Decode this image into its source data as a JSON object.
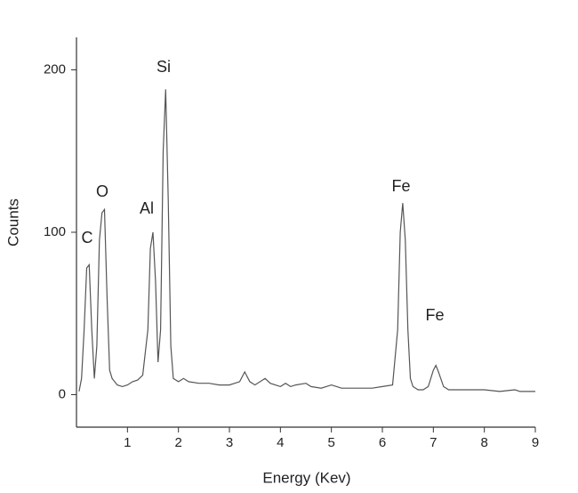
{
  "chart_data": {
    "type": "line",
    "x_label": "Energy (Kev)",
    "y_label": "Counts",
    "xlim": [
      0,
      9
    ],
    "ylim": [
      -20,
      220
    ],
    "xticks": [
      1,
      2,
      3,
      4,
      5,
      6,
      7,
      8,
      9
    ],
    "yticks": [
      0,
      100,
      200
    ],
    "peak_labels": [
      "C",
      "O",
      "Al",
      "Si",
      "Fe",
      "Fe"
    ],
    "color": "#555555",
    "x": [
      0.05,
      0.1,
      0.15,
      0.2,
      0.25,
      0.3,
      0.35,
      0.4,
      0.45,
      0.5,
      0.55,
      0.6,
      0.65,
      0.7,
      0.8,
      0.9,
      1.0,
      1.1,
      1.2,
      1.3,
      1.4,
      1.45,
      1.5,
      1.55,
      1.6,
      1.65,
      1.7,
      1.75,
      1.8,
      1.85,
      1.9,
      2.0,
      2.1,
      2.2,
      2.4,
      2.6,
      2.8,
      3.0,
      3.2,
      3.3,
      3.4,
      3.5,
      3.7,
      3.8,
      3.9,
      4.0,
      4.1,
      4.2,
      4.3,
      4.5,
      4.6,
      4.8,
      5.0,
      5.2,
      5.4,
      5.6,
      5.8,
      6.0,
      6.2,
      6.3,
      6.35,
      6.4,
      6.45,
      6.5,
      6.55,
      6.6,
      6.7,
      6.8,
      6.9,
      7.0,
      7.05,
      7.1,
      7.2,
      7.3,
      7.5,
      7.8,
      8.0,
      8.3,
      8.6,
      8.7,
      9.0
    ],
    "values": [
      2,
      10,
      40,
      78,
      80,
      40,
      10,
      30,
      95,
      112,
      114,
      60,
      15,
      10,
      6,
      5,
      6,
      8,
      9,
      12,
      40,
      90,
      100,
      70,
      20,
      40,
      150,
      188,
      120,
      30,
      10,
      8,
      10,
      8,
      7,
      7,
      6,
      6,
      8,
      14,
      8,
      6,
      10,
      7,
      6,
      5,
      7,
      5,
      6,
      7,
      5,
      4,
      6,
      4,
      4,
      4,
      4,
      5,
      6,
      40,
      100,
      118,
      95,
      40,
      10,
      5,
      3,
      3,
      5,
      15,
      18,
      14,
      5,
      3,
      3,
      3,
      3,
      2,
      3,
      2,
      2
    ]
  }
}
